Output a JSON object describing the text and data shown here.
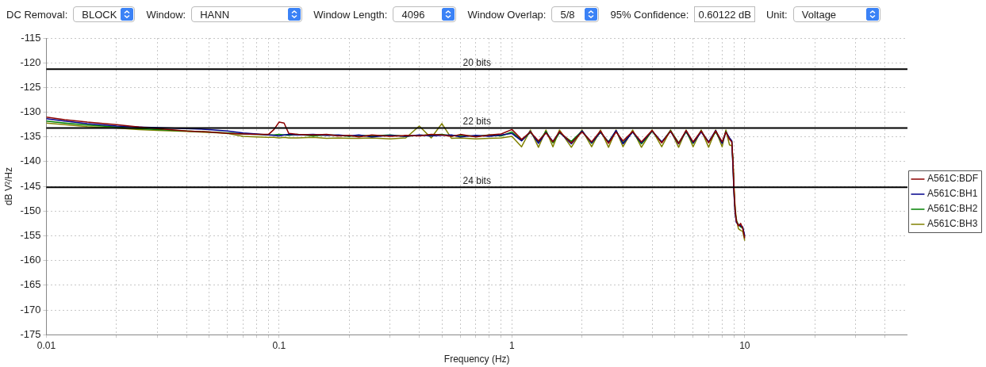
{
  "chart_data": {
    "type": "line",
    "xlabel": "Frequency (Hz)",
    "ylabel": "dB V²/Hz",
    "log": "x",
    "grid": true,
    "legend": "right",
    "marker": "none",
    "line_style": "solid",
    "xlim": [
      0.01,
      50
    ],
    "ylim": [
      -175,
      -115
    ],
    "xticks": [
      0.01,
      {
        "value": 0.02,
        "label": null
      },
      {
        "value": 0.03,
        "label": null
      },
      {
        "value": 0.04,
        "label": null
      },
      {
        "value": 0.05,
        "label": null
      },
      {
        "value": 0.06,
        "label": null
      },
      {
        "value": 0.07,
        "label": null
      },
      {
        "value": 0.08,
        "label": null
      },
      {
        "value": 0.09,
        "label": null
      },
      0.1,
      {
        "value": 0.2,
        "label": null
      },
      {
        "value": 0.3,
        "label": null
      },
      {
        "value": 0.4,
        "label": null
      },
      {
        "value": 0.5,
        "label": null
      },
      {
        "value": 0.6,
        "label": null
      },
      {
        "value": 0.7,
        "label": null
      },
      {
        "value": 0.8,
        "label": null
      },
      {
        "value": 0.9,
        "label": null
      },
      1,
      {
        "value": 2,
        "label": null
      },
      {
        "value": 3,
        "label": null
      },
      {
        "value": 4,
        "label": null
      },
      {
        "value": 5,
        "label": null
      },
      {
        "value": 6,
        "label": null
      },
      {
        "value": 7,
        "label": null
      },
      {
        "value": 8,
        "label": null
      },
      {
        "value": 9,
        "label": null
      },
      10,
      {
        "value": 20,
        "label": null
      },
      {
        "value": 30,
        "label": null
      },
      {
        "value": 40,
        "label": null
      }
    ],
    "yticks": [
      -175,
      -170,
      -165,
      -160,
      -155,
      -150,
      -145,
      -140,
      -135,
      -130,
      -125,
      -120,
      -115
    ],
    "x": [
      0.01,
      0.012,
      0.015,
      0.02,
      0.025,
      0.03,
      0.04,
      0.05,
      0.06,
      0.07,
      0.08,
      0.09,
      0.095,
      0.1,
      0.105,
      0.11,
      0.12,
      0.14,
      0.16,
      0.18,
      0.2,
      0.22,
      0.25,
      0.3,
      0.35,
      0.4,
      0.45,
      0.5,
      0.55,
      0.6,
      0.7,
      0.8,
      0.9,
      1,
      1.1,
      1.2,
      1.3,
      1.4,
      1.5,
      1.6,
      1.8,
      2,
      2.2,
      2.4,
      2.6,
      2.8,
      3,
      3.3,
      3.6,
      4,
      4.4,
      4.8,
      5.2,
      5.6,
      6,
      6.5,
      7,
      7.5,
      8,
      8.3,
      8.6,
      8.8,
      8.9,
      9,
      9.1,
      9.2,
      9.4,
      9.6,
      9.8,
      10
    ],
    "series": [
      {
        "name": "A561C:BDF",
        "color": "#8b0000",
        "values": [
          -131,
          -131.5,
          -132,
          -132.5,
          -133,
          -133.3,
          -133.8,
          -134,
          -134.3,
          -134.4,
          -134.5,
          -134.5,
          -133.5,
          -132,
          -132.2,
          -134.3,
          -134.5,
          -134.6,
          -134.5,
          -134.8,
          -134.7,
          -135,
          -134.6,
          -134.9,
          -134.7,
          -134.8,
          -134.5,
          -134.6,
          -134.9,
          -134.5,
          -135,
          -134.6,
          -134.4,
          -133.5,
          -135.5,
          -134,
          -135.8,
          -134.2,
          -136,
          -133.9,
          -136.2,
          -134,
          -136,
          -133.8,
          -136.3,
          -134,
          -135.8,
          -133.9,
          -136,
          -133.7,
          -136.2,
          -133.8,
          -136.3,
          -133.7,
          -136,
          -133.8,
          -136.2,
          -133.8,
          -136,
          -134,
          -135.5,
          -136,
          -140,
          -146,
          -150,
          -152,
          -153,
          -152.5,
          -153.5,
          -155.5
        ]
      },
      {
        "name": "A561C:BH1",
        "color": "#00008b",
        "values": [
          -131.3,
          -131.8,
          -132.3,
          -132.8,
          -133,
          -133.1,
          -133.3,
          -133.5,
          -133.8,
          -134.2,
          -134.4,
          -134.6,
          -134.7,
          -134.8,
          -134.6,
          -134.5,
          -134.6,
          -134.5,
          -134.7,
          -134.6,
          -134.8,
          -134.6,
          -135,
          -134.7,
          -134.9,
          -134.6,
          -134.8,
          -134.7,
          -134.6,
          -135,
          -134.7,
          -134.9,
          -134.6,
          -134.3,
          -135.8,
          -133.9,
          -136.3,
          -134.1,
          -135.9,
          -134,
          -136.4,
          -133.8,
          -136.2,
          -134,
          -136.1,
          -133.7,
          -136.4,
          -134,
          -136.2,
          -133.8,
          -136,
          -133.9,
          -136.4,
          -133.8,
          -136.2,
          -134,
          -136,
          -133.7,
          -136.3,
          -134,
          -135.2,
          -135.8,
          -141,
          -147,
          -150.5,
          -152.3,
          -152.8,
          -153,
          -153.2,
          -155
        ]
      },
      {
        "name": "A561C:BH2",
        "color": "#008000",
        "values": [
          -131.8,
          -132.2,
          -132.6,
          -133,
          -133.3,
          -133.5,
          -133.8,
          -134,
          -134.2,
          -134.4,
          -134.5,
          -134.6,
          -134.6,
          -134.5,
          -134.6,
          -134.7,
          -134.5,
          -134.8,
          -134.6,
          -134.7,
          -134.9,
          -134.7,
          -134.8,
          -134.6,
          -134.9,
          -134.7,
          -134.6,
          -134.5,
          -134.8,
          -134.7,
          -134.9,
          -134.6,
          -134.8,
          -134,
          -135.7,
          -134.1,
          -136,
          -133.9,
          -136.2,
          -134.2,
          -135.9,
          -133.8,
          -136.3,
          -134.1,
          -136,
          -133.8,
          -136.2,
          -134,
          -136.4,
          -133.9,
          -136.1,
          -133.7,
          -136.2,
          -134,
          -136.3,
          -133.8,
          -136.1,
          -134,
          -136.2,
          -133.9,
          -135.3,
          -135.9,
          -140.5,
          -146.5,
          -150.2,
          -152,
          -152.7,
          -153.2,
          -153.4,
          -155.2
        ]
      },
      {
        "name": "A561C:BH3",
        "color": "#808000",
        "values": [
          -132.2,
          -132.5,
          -132.9,
          -133.2,
          -133.5,
          -133.7,
          -133.9,
          -134.1,
          -134.3,
          -134.9,
          -135,
          -135.1,
          -135.1,
          -135.2,
          -135.1,
          -135.2,
          -135.2,
          -135.1,
          -135.3,
          -135.2,
          -135.3,
          -135.3,
          -135.2,
          -135.4,
          -135.2,
          -132.8,
          -135.2,
          -132.3,
          -135.3,
          -135.2,
          -135.4,
          -135.3,
          -135.2,
          -134.9,
          -137,
          -133.6,
          -137.1,
          -133.6,
          -137,
          -133.6,
          -137.1,
          -133.6,
          -137,
          -133.6,
          -137.1,
          -133.6,
          -137,
          -133.6,
          -137.1,
          -133.6,
          -137,
          -133.6,
          -137.1,
          -133.6,
          -137,
          -133.6,
          -137.1,
          -133.6,
          -137,
          -133.6,
          -136.6,
          -136.8,
          -139.3,
          -145.3,
          -149.5,
          -151.5,
          -153.6,
          -153.9,
          -154.1,
          -156
        ]
      }
    ],
    "ref_lines": [
      {
        "axis": "y",
        "value": -121.3,
        "label": "20 bits",
        "color": "#000000"
      },
      {
        "axis": "y",
        "value": -133.2,
        "label": "22 bits",
        "color": "#000000"
      },
      {
        "axis": "y",
        "value": -145.2,
        "label": "24 bits",
        "color": "#000000"
      }
    ],
    "annotations": [
      "DC Removal:",
      "BLOCK",
      "Window:",
      "HANN",
      "Window Length:",
      "4096",
      "Window Overlap:",
      "5/8",
      "95% Confidence:",
      "0.60122 dB",
      "Unit:",
      "Voltage"
    ]
  }
}
